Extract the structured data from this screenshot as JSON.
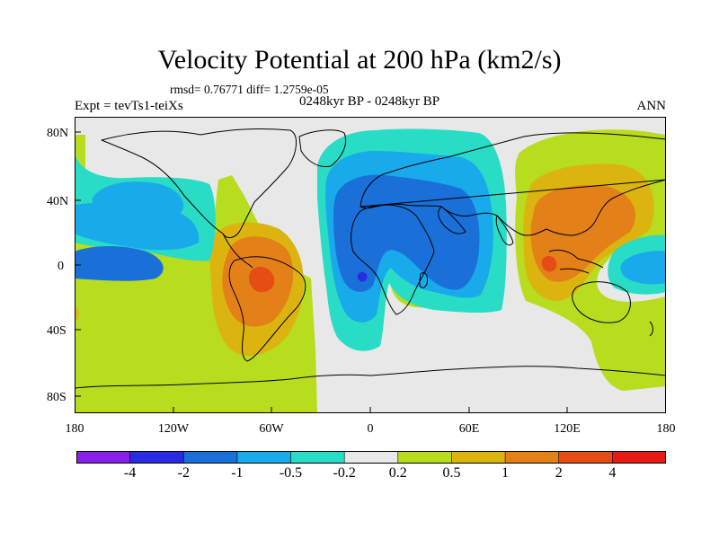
{
  "title": "Velocity Potential at 200 hPa (km2/s)",
  "stats": {
    "rmsd_label": "rmsd= 0.76771",
    "diff_label": "diff= 1.2759e-05"
  },
  "experiment": "Expt = tevTs1-teiXs",
  "period": "0248kyr BP - 0248kyr BP",
  "season": "ANN",
  "lat_labels": [
    "80N",
    "40N",
    "0",
    "40S",
    "80S"
  ],
  "lon_labels": [
    "180",
    "120W",
    "60W",
    "0",
    "60E",
    "120E",
    "180"
  ],
  "colorbar": {
    "colors": [
      "#8a20e8",
      "#2a2ae0",
      "#1a70d8",
      "#18aaea",
      "#28dcc6",
      "#e8e8e8",
      "#b8dc1e",
      "#dcb410",
      "#e48018",
      "#e64c16",
      "#e81a14"
    ],
    "labels": [
      "-4",
      "-2",
      "-1",
      "-0.5",
      "-0.2",
      "0.2",
      "0.5",
      "1",
      "2",
      "4"
    ]
  },
  "legend_levels": {
    "pos_light": "#b8dc1e",
    "pos_mid": "#dcb410",
    "pos_strong": "#e48018",
    "pos_core": "#e64c16",
    "neg_light": "#28dcc6",
    "neg_mid": "#18aaea",
    "neg_strong": "#1a70d8",
    "neg_core": "#2a2ae0",
    "neutral": "#e8e8e8"
  }
}
